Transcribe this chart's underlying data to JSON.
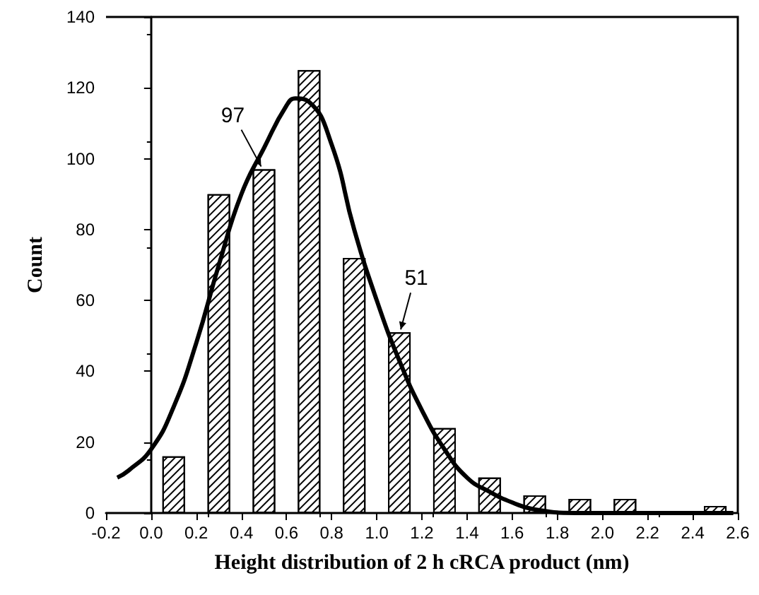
{
  "chart_data": {
    "type": "bar",
    "xlabel": "Height distribution of 2 h cRCA product (nm)",
    "ylabel": "Count",
    "xlim": [
      -0.2,
      2.6
    ],
    "xticks": [
      -0.2,
      {
        "value": 0,
        "label": "0.0"
      },
      0.2,
      0.4,
      0.6,
      0.8,
      {
        "value": 1,
        "label": "1.0"
      },
      1.2,
      1.4,
      1.6,
      1.8,
      {
        "value": 2,
        "label": "2.0"
      },
      2.2,
      2.4,
      2.6
    ],
    "ylim": [
      0,
      140
    ],
    "yticks": [
      0,
      20,
      40,
      60,
      80,
      100,
      120,
      140
    ],
    "series": [
      {
        "color": "#000000",
        "x": [
          0.1,
          0.3,
          0.5,
          0.7,
          0.9,
          1.1,
          1.3,
          1.5,
          1.7,
          1.9,
          2.1,
          2.5
        ],
        "values": [
          16,
          90,
          97,
          125,
          72,
          51,
          24,
          10,
          5,
          4,
          4,
          2
        ]
      },
      {
        "type": "line",
        "color": "#000000",
        "marker": "none",
        "x": [
          -0.15,
          -0.1,
          0,
          0.1,
          0.2,
          0.3,
          0.4,
          0.5,
          0.6,
          0.64,
          0.7,
          0.8,
          0.9,
          1.0,
          1.1,
          1.2,
          1.3,
          1.4,
          1.5,
          1.6,
          1.7,
          1.9,
          2.2,
          2.58
        ],
        "values": [
          10,
          12,
          18,
          30,
          48,
          70,
          90,
          103,
          115,
          117,
          116,
          104,
          80,
          60,
          43,
          29,
          18,
          10,
          6,
          3,
          1,
          0,
          0,
          0
        ]
      }
    ],
    "annotations": [
      {
        "text": "97",
        "x": 0.5,
        "y": 97
      },
      {
        "text": "51",
        "x": 1.1,
        "y": 51
      }
    ]
  }
}
